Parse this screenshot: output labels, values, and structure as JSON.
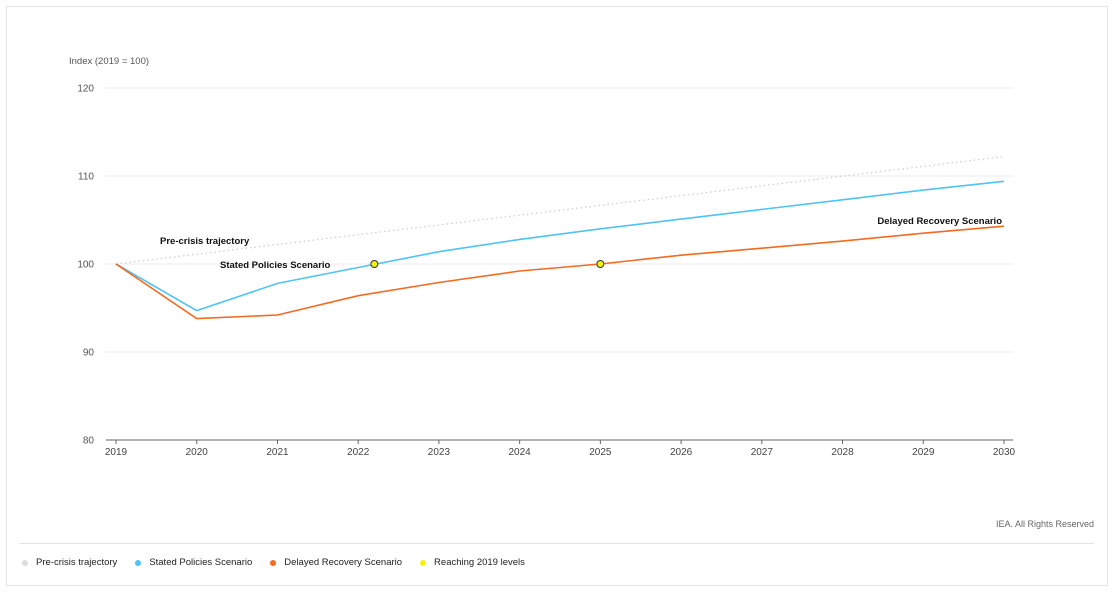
{
  "chart_data": {
    "type": "line",
    "ylabel": "Index (2019 = 100)",
    "ylim": [
      80,
      120
    ],
    "yticks": [
      80,
      90,
      100,
      110,
      120
    ],
    "xlim": [
      2019,
      2030
    ],
    "xticks": [
      2019,
      2020,
      2021,
      2022,
      2023,
      2024,
      2025,
      2026,
      2027,
      2028,
      2029,
      2030
    ],
    "grid": true,
    "legend": "bottom",
    "series": [
      {
        "name": "Pre-crisis trajectory",
        "key": "pre",
        "style": "dotted",
        "color": "#cccccc",
        "x": [
          2019,
          2030
        ],
        "y": [
          100,
          112.2
        ],
        "label": "Pre-crisis trajectory"
      },
      {
        "name": "Stated Policies Scenario",
        "key": "sps",
        "style": "solid",
        "color": "#4fc3f7",
        "x": [
          2019,
          2020,
          2021,
          2022,
          2023,
          2024,
          2025,
          2026,
          2027,
          2028,
          2029,
          2030
        ],
        "y": [
          100,
          94.7,
          97.8,
          99.6,
          101.4,
          102.8,
          104.0,
          105.1,
          106.2,
          107.3,
          108.4,
          109.4
        ],
        "label": "Stated Policies Scenario"
      },
      {
        "name": "Delayed Recovery Scenario",
        "key": "drs",
        "style": "solid",
        "color": "#f26b21",
        "x": [
          2019,
          2020,
          2021,
          2022,
          2023,
          2024,
          2025,
          2026,
          2027,
          2028,
          2029,
          2030
        ],
        "y": [
          100,
          93.8,
          94.2,
          96.4,
          97.9,
          99.2,
          100.0,
          101.0,
          101.8,
          102.6,
          103.5,
          104.3
        ],
        "label": "Delayed Recovery Scenario"
      }
    ],
    "markers": {
      "name": "Reaching 2019 levels",
      "color": "#f2f20a",
      "stroke": "#333333",
      "points": [
        {
          "x": 2022.2,
          "y": 100
        },
        {
          "x": 2025.0,
          "y": 100
        }
      ]
    }
  },
  "credit": "IEA. All Rights Reserved",
  "legend": [
    {
      "label": "Pre-crisis trajectory",
      "color": "#dddddd"
    },
    {
      "label": "Stated Policies Scenario",
      "color": "#4fc3f7"
    },
    {
      "label": "Delayed Recovery Scenario",
      "color": "#f26b21"
    },
    {
      "label": "Reaching 2019 levels",
      "color": "#f2f20a"
    }
  ]
}
